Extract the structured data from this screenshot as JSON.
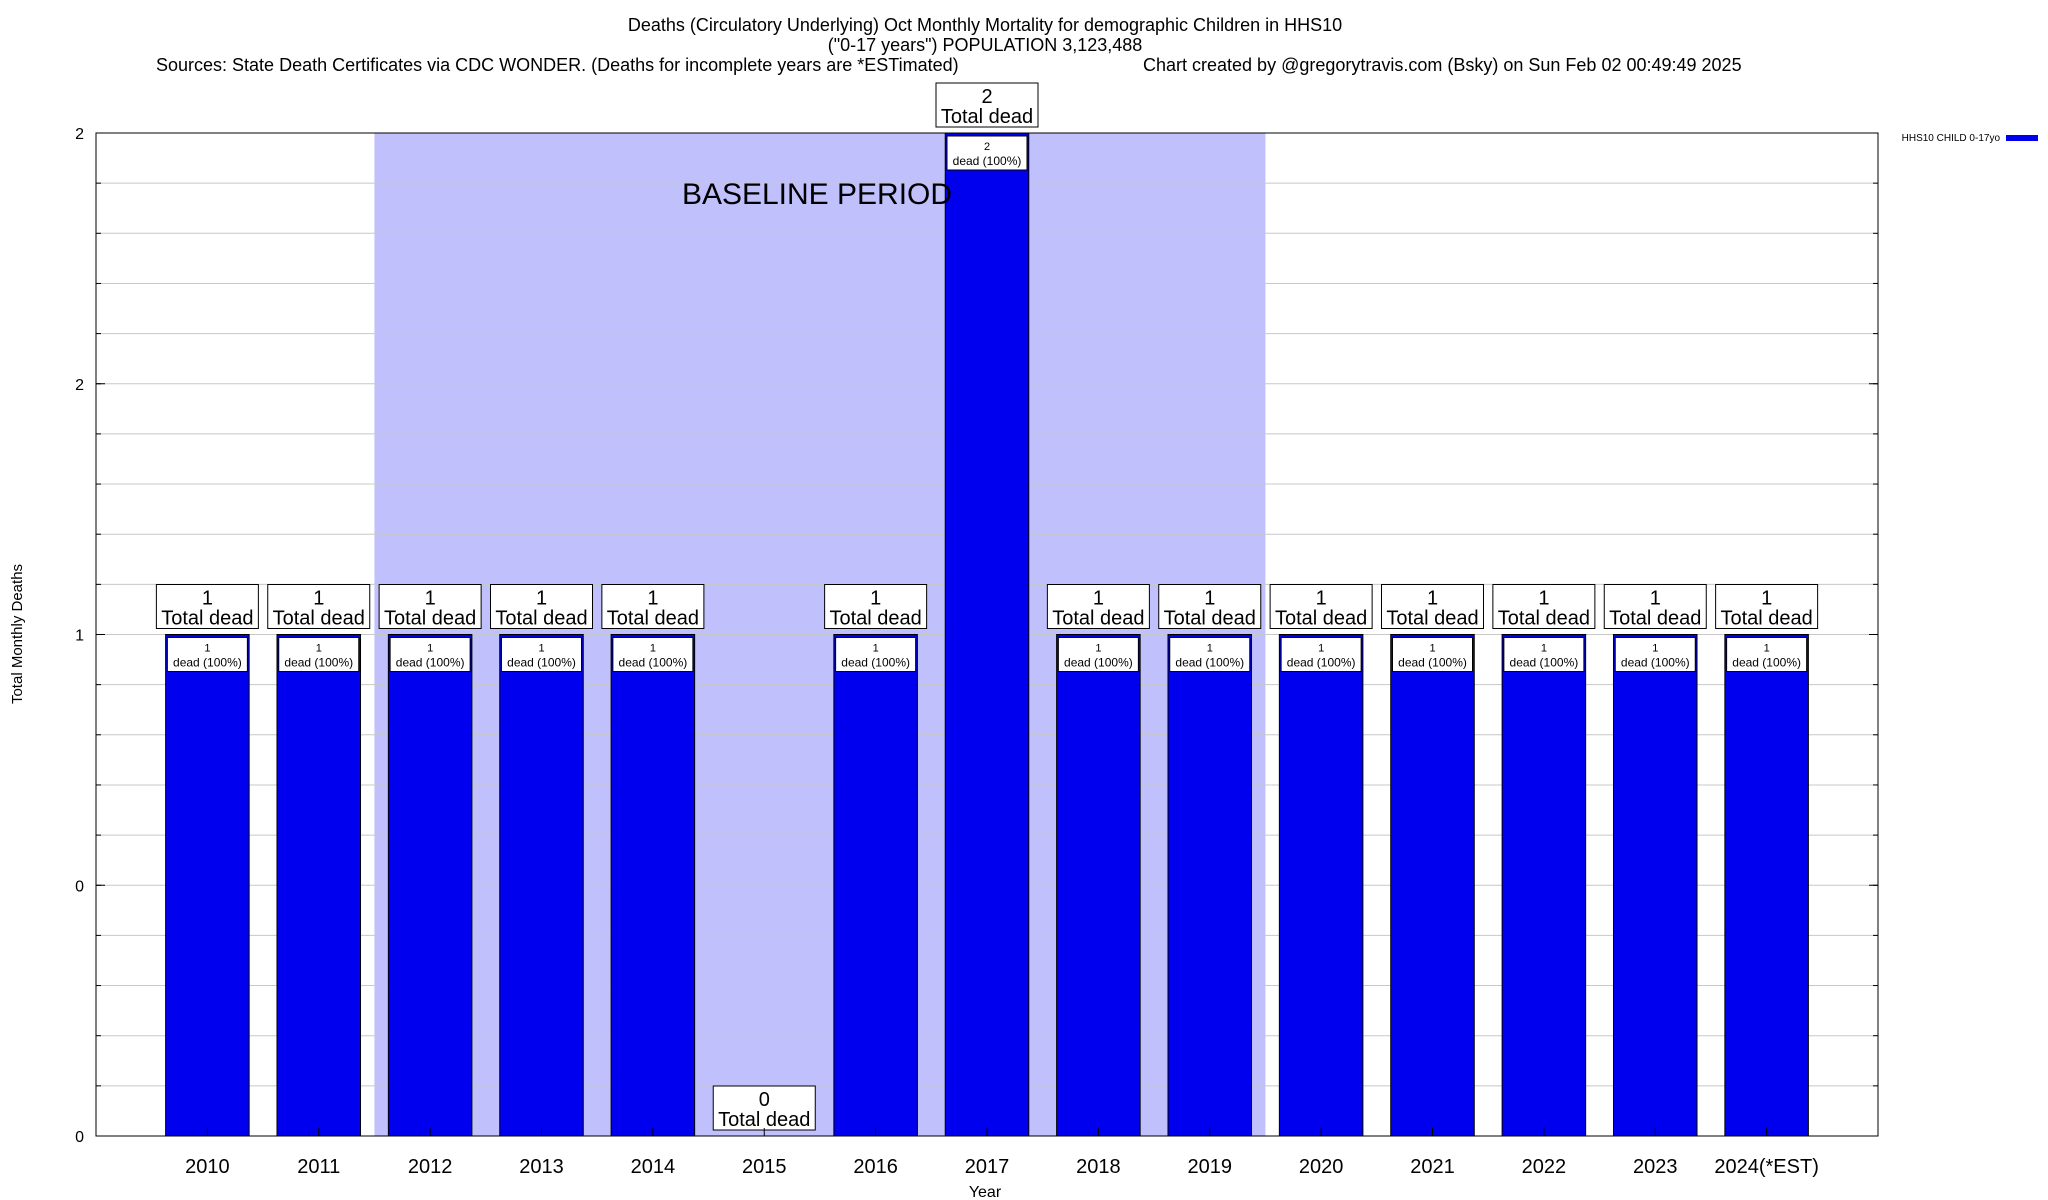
{
  "chart_data": {
    "type": "bar",
    "title_lines": [
      "Deaths (Circulatory Underlying) Oct Monthly Mortality for demographic Children in HHS10",
      "(\"0-17 years\") POPULATION 3,123,488"
    ],
    "source": "Sources: State Death Certificates via CDC WONDER. (Deaths for incomplete years are *ESTimated)",
    "credit": "Chart created by @gregorytravis.com (Bsky) on Sun Feb 02 00:49:49 2025",
    "xlabel": "Year",
    "ylabel": "Total Monthly Deaths",
    "y_tick_labels": [
      "0",
      "0",
      "1",
      "2",
      "2"
    ],
    "y_tick_values": [
      0,
      0.5,
      1,
      1.5,
      2
    ],
    "ylim": [
      0,
      2
    ],
    "baseline_label": "BASELINE PERIOD",
    "baseline_range": [
      "2012",
      "2019"
    ],
    "categories": [
      "2010",
      "2011",
      "2012",
      "2013",
      "2014",
      "2015",
      "2016",
      "2017",
      "2018",
      "2019",
      "2020",
      "2021",
      "2022",
      "2023",
      "2024(*EST)"
    ],
    "values": [
      1,
      1,
      1,
      1,
      1,
      0,
      1,
      2,
      1,
      1,
      1,
      1,
      1,
      1,
      1
    ],
    "top_label_suffix": "Total dead",
    "inner_labels": [
      "1",
      "1",
      "1",
      "1",
      "1",
      "",
      "1",
      "2",
      "1",
      "1",
      "1",
      "1",
      "1",
      "1",
      "1"
    ],
    "inner_label_suffix": "dead (100%)",
    "series": [
      {
        "name": "HHS10 CHILD 0-17yo",
        "values": [
          1,
          1,
          1,
          1,
          1,
          0,
          1,
          2,
          1,
          1,
          1,
          1,
          1,
          1,
          1
        ]
      }
    ],
    "legend_position": "top-right",
    "grid": true,
    "colors": {
      "bar": "#0000ee",
      "baseline": "#c0c0fd",
      "grid": "#c8c8c8"
    }
  }
}
